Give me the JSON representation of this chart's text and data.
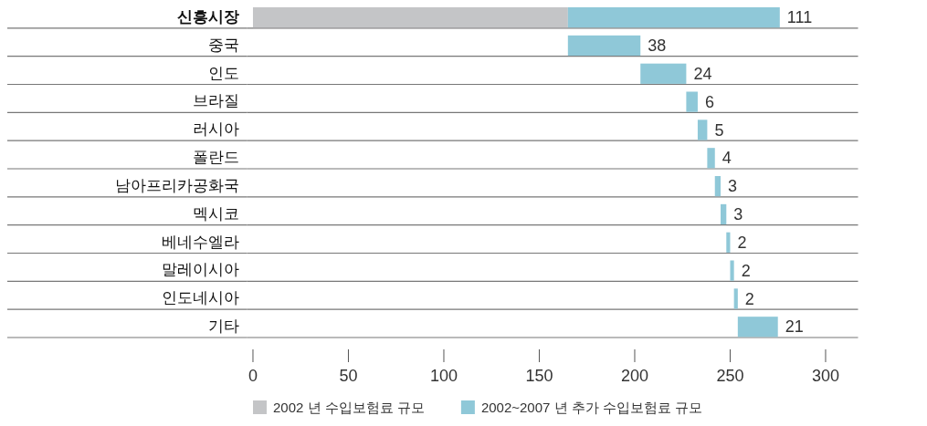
{
  "chart_data": {
    "type": "bar",
    "orientation": "horizontal",
    "categories": [
      "신흥시장",
      "중국",
      "인도",
      "브라질",
      "러시아",
      "폴란드",
      "남아프리카공화국",
      "멕시코",
      "베네수엘라",
      "말레이시아",
      "인도네시아",
      "기타"
    ],
    "series": [
      {
        "name": "2002 년 수입보험료 규모",
        "color": "#c4c5c7",
        "values": [
          165,
          null,
          null,
          null,
          null,
          null,
          null,
          null,
          null,
          null,
          null,
          null
        ]
      },
      {
        "name": "2002~2007 년 추가 수입보험료 규모",
        "color": "#8fc8d8",
        "values": [
          111,
          38,
          24,
          6,
          5,
          4,
          3,
          3,
          2,
          2,
          2,
          21
        ],
        "base": [
          165,
          165,
          203,
          227,
          233,
          238,
          242,
          245,
          248,
          250,
          252,
          254
        ],
        "value_labels": [
          "111",
          "38",
          "24",
          "6",
          "5",
          "4",
          "3",
          "3",
          "2",
          "2",
          "2",
          "21"
        ]
      }
    ],
    "xlim": [
      -3,
      317
    ],
    "xticks": [
      0,
      50,
      100,
      150,
      200,
      250,
      300
    ],
    "grid": "y",
    "legend": "bottom left"
  }
}
